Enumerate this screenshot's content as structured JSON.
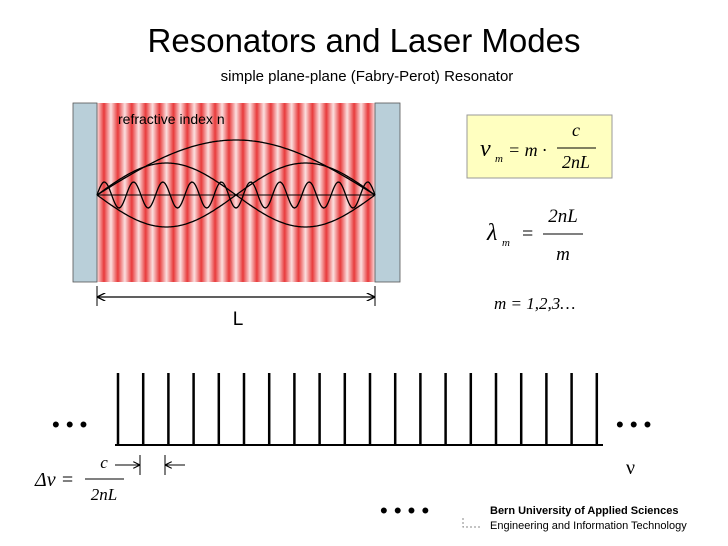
{
  "header": {
    "title": "Resonators and Laser Modes",
    "subtitle": "simple plane-plane (Fabry-Perot) Resonator"
  },
  "resonator": {
    "medium_label": "refractive index n",
    "length_label": "L"
  },
  "formulas": {
    "frequency": {
      "symbol": "ν",
      "sub": "m",
      "rhs": "= m ·",
      "num": "c",
      "den": "2nL"
    },
    "wavelength": {
      "symbol": "λ",
      "sub": "m",
      "rhs": "=",
      "num": "2nL",
      "den": "m"
    },
    "mode_numbers": "m = 1,2,3…",
    "spacing": {
      "lhs": "Δν =",
      "num": "c",
      "den": "2nL"
    }
  },
  "spectrum": {
    "ellipsis_left": "• • •",
    "ellipsis_right": "• • •",
    "axis_label": "ν"
  },
  "footer": {
    "dots": "• • • •",
    "institution": "Bern University of Applied Sciences",
    "department": "Engineering and Information Technology"
  }
}
